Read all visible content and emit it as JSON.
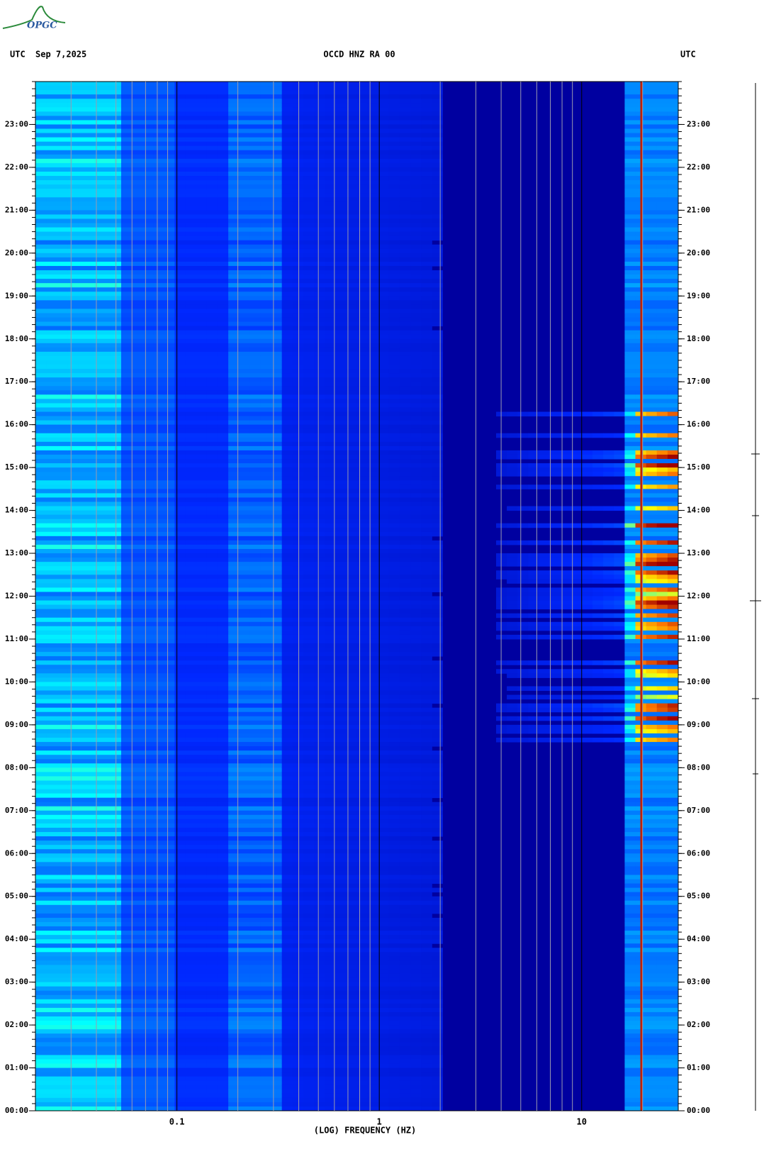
{
  "chart_data": {
    "type": "spectrogram",
    "logo": "OPGC",
    "timezone_left": "UTC",
    "date": "Sep 7,2025",
    "title": "OCCD HNZ RA 00",
    "timezone_right": "UTC",
    "x_label": "(LOG) FREQUENCY (HZ)",
    "xscale": "log",
    "xlim": [
      0.02,
      30
    ],
    "xticks": [
      {
        "value": 0.1,
        "label": "0.1"
      },
      1,
      10
    ],
    "ylim": [
      0,
      24
    ],
    "yticks": [
      {
        "value": 0,
        "label": "00:00"
      },
      {
        "value": 1,
        "label": "01:00"
      },
      {
        "value": 2,
        "label": "02:00"
      },
      {
        "value": 3,
        "label": "03:00"
      },
      {
        "value": 4,
        "label": "04:00"
      },
      {
        "value": 5,
        "label": "05:00"
      },
      {
        "value": 6,
        "label": "06:00"
      },
      {
        "value": 7,
        "label": "07:00"
      },
      {
        "value": 8,
        "label": "08:00"
      },
      {
        "value": 9,
        "label": "09:00"
      },
      {
        "value": 10,
        "label": "10:00"
      },
      {
        "value": 11,
        "label": "11:00"
      },
      {
        "value": 12,
        "label": "12:00"
      },
      {
        "value": 13,
        "label": "13:00"
      },
      {
        "value": 14,
        "label": "14:00"
      },
      {
        "value": 15,
        "label": "15:00"
      },
      {
        "value": 16,
        "label": "16:00"
      },
      {
        "value": 17,
        "label": "17:00"
      },
      {
        "value": 18,
        "label": "18:00"
      },
      {
        "value": 19,
        "label": "19:00"
      },
      {
        "value": 20,
        "label": "20:00"
      },
      {
        "value": 21,
        "label": "21:00"
      },
      {
        "value": 22,
        "label": "22:00"
      },
      {
        "value": 23,
        "label": "23:00"
      }
    ],
    "grid": true
  }
}
